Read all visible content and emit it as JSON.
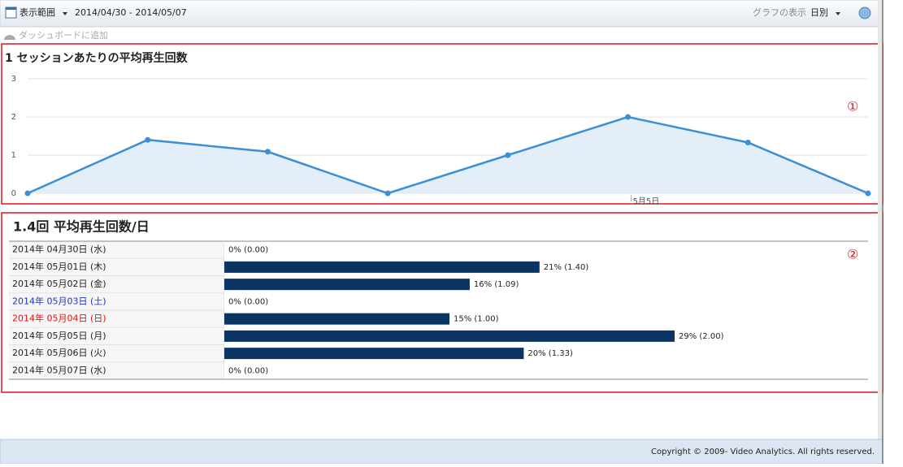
{
  "toolbar": {
    "range_label": "表示範囲",
    "range": "2014/04/30 - 2014/05/07",
    "graph_label": "グラフの表示",
    "graph_mode": "日別",
    "dashboard": "ダッシュボードに追加"
  },
  "chart_data": {
    "type": "area",
    "title": "1 セッションあたりの平均再生回数",
    "categories": [
      null,
      null,
      null,
      null,
      null,
      "5月5日",
      null,
      null
    ],
    "values": [
      0,
      1.4,
      1.09,
      0,
      1.0,
      2.0,
      1.33,
      0
    ],
    "color": "#3b8fd6",
    "fill": "#e3eef9",
    "ylim": [
      0,
      3
    ],
    "yticks": [
      0,
      1,
      2,
      3
    ],
    "grid": true
  },
  "annotations": [
    "①",
    "②"
  ],
  "summary": "1.4回 平均再生回数/日",
  "table": {
    "rows": [
      {
        "date": "2014年 04月30日 (水)",
        "value": 0.0,
        "label": "0% (0.00)"
      },
      {
        "date": "2014年 05月01日 (木)",
        "value": 1.4,
        "label": "21% (1.40)"
      },
      {
        "date": "2014年 05月02日 (金)",
        "value": 1.09,
        "label": "16% (1.09)"
      },
      {
        "date": "2014年 05月03日 (土)",
        "value": 0.0,
        "label": "0% (0.00)"
      },
      {
        "date": "2014年 05月04日 (日)",
        "value": 1.0,
        "label": "15% (1.00)"
      },
      {
        "date": "2014年 05月05日 (月)",
        "value": 2.0,
        "label": "29% (2.00)"
      },
      {
        "date": "2014年 05月06日 (火)",
        "value": 1.33,
        "label": "20% (1.33)"
      },
      {
        "date": "2014年 05月07日 (水)",
        "value": 0.0,
        "label": "0% (0.00)"
      }
    ],
    "bar_color": "#0b3463"
  },
  "footer": "Copyright © 2009- Video Analytics. All rights reserved."
}
